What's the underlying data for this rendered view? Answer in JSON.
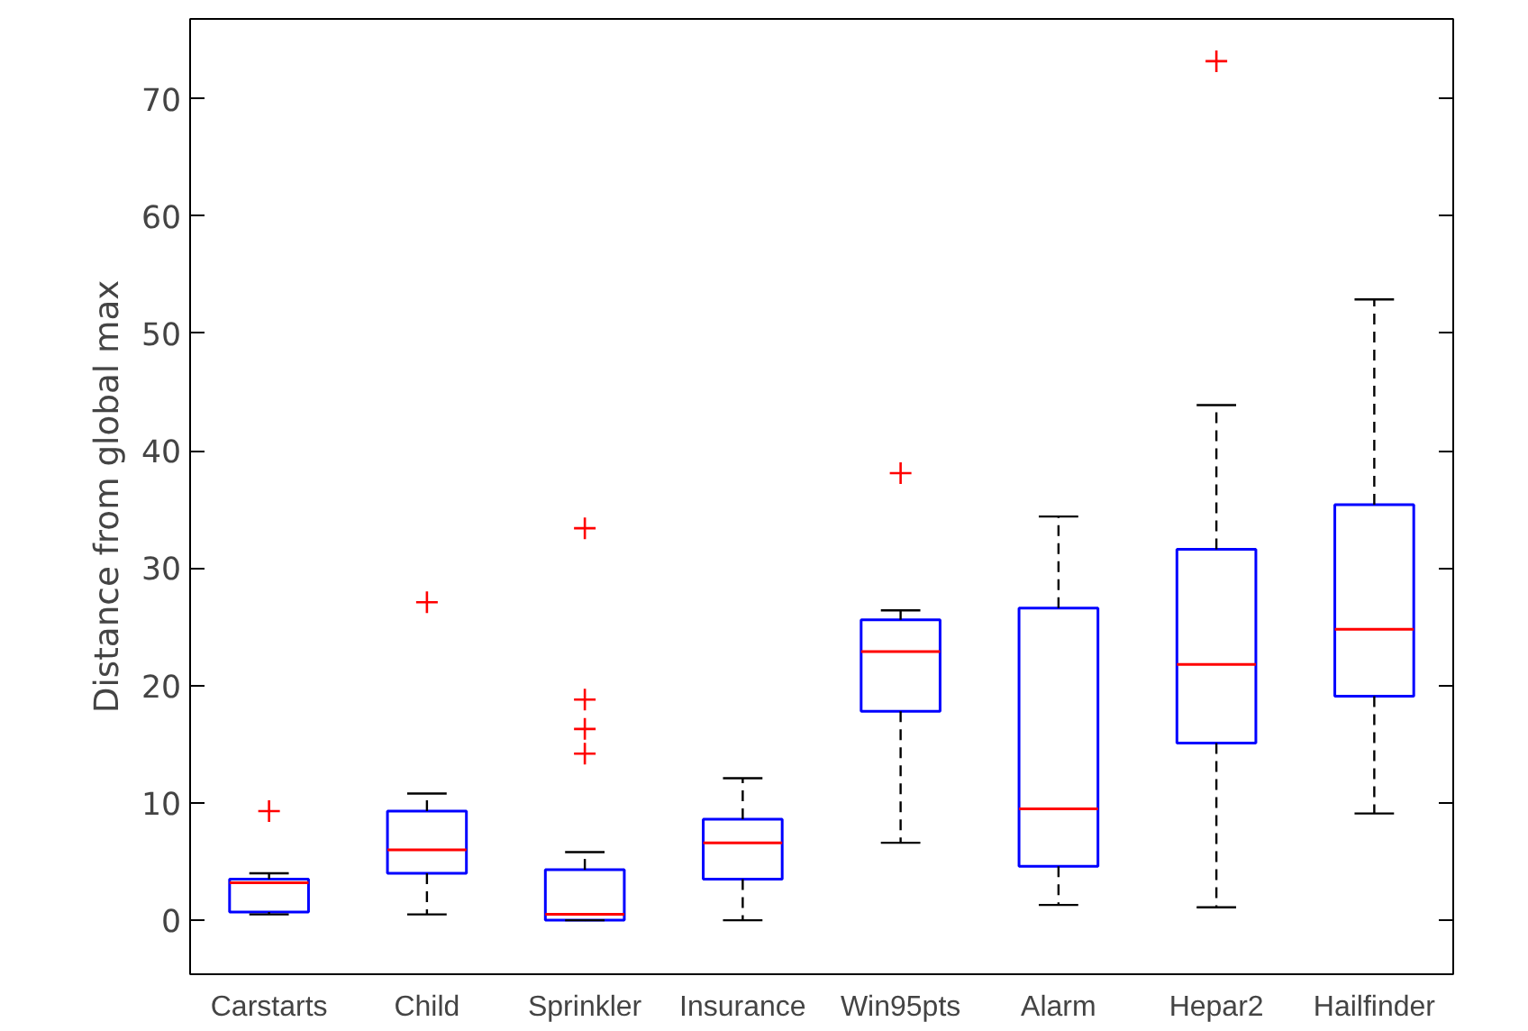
{
  "chart_data": {
    "type": "box",
    "ylabel": "Distance from global max",
    "categories": [
      "Carstarts",
      "Child",
      "Sprinkler",
      "Insurance",
      "Win95pts",
      "Alarm",
      "Hepar2",
      "Hailfinder"
    ],
    "boxes": [
      {
        "low": 0.5,
        "q1": 0.7,
        "median": 3.2,
        "q3": 3.5,
        "high": 4.0,
        "outliers": [
          9.3
        ]
      },
      {
        "low": 0.5,
        "q1": 4.0,
        "median": 6.0,
        "q3": 9.3,
        "high": 10.8,
        "outliers": [
          27.1
        ]
      },
      {
        "low": 0,
        "q1": 0,
        "median": 0.5,
        "q3": 4.3,
        "high": 5.8,
        "outliers": [
          33.4,
          18.8,
          16.3,
          14.2
        ]
      },
      {
        "low": 0,
        "q1": 3.5,
        "median": 6.6,
        "q3": 8.6,
        "high": 12.1
      },
      {
        "low": 6.6,
        "q1": 17.8,
        "median": 22.9,
        "q3": 25.6,
        "high": 26.4,
        "outliers": [
          38.1
        ]
      },
      {
        "low": 1.3,
        "q1": 4.6,
        "median": 9.5,
        "q3": 26.6,
        "high": 34.4
      },
      {
        "low": 1.1,
        "q1": 15.1,
        "median": 21.8,
        "q3": 31.6,
        "high": 43.9,
        "outliers": [
          73.2
        ]
      },
      {
        "low": 9.1,
        "q1": 19.1,
        "median": 24.8,
        "q3": 35.4,
        "high": 52.9
      }
    ],
    "ylim": [
      -4.6,
      76.8
    ],
    "yticks": [
      0,
      10,
      20,
      30,
      40,
      50,
      60,
      70
    ]
  }
}
